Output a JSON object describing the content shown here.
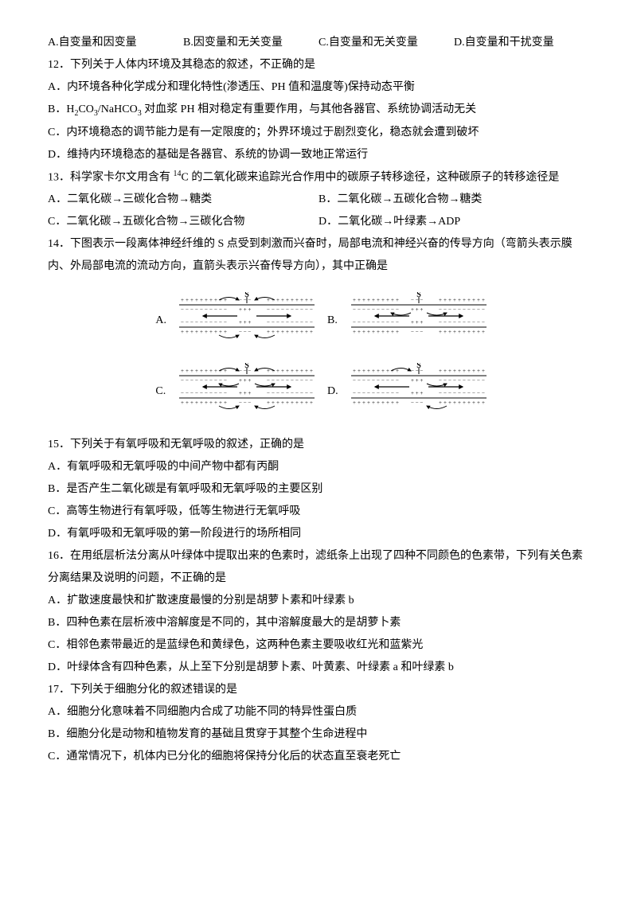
{
  "q11_opts": {
    "a": "A.自变量和因变量",
    "b": "B.因变量和无关变量",
    "c": "C.自变量和无关变量",
    "d": "D.自变量和干扰变量"
  },
  "q12": {
    "stem": "12．下列关于人体内环境及其稳态的叙述，不正确的是",
    "a": "A．内环境各种化学成分和理化特性(渗透压、PH 值和温度等)保持动态平衡",
    "b_pre": "B．H",
    "b_sub1": "2",
    "b_mid1": "CO",
    "b_sub2": "3",
    "b_mid2": "/NaHCO",
    "b_sub3": "3",
    "b_post": " 对血浆 PH 相对稳定有重要作用，与其他各器官、系统协调活动无关",
    "c": "C．内环境稳态的调节能力是有一定限度的；外界环境过于剧烈变化，稳态就会遭到破坏",
    "d": "D．维持内环境稳态的基础是各器官、系统的协调一致地正常运行"
  },
  "q13": {
    "stem_pre": "13．科学家卡尔文用含有 ",
    "stem_sup": "14",
    "stem_post": "C 的二氧化碳来追踪光合作用中的碳原子转移途径，这种碳原子的转移途径是",
    "a": "A．二氧化碳→三碳化合物→糖类",
    "b": "B．二氧化碳→五碳化合物→糖类",
    "c": "C．二氧化碳→五碳化合物→三碳化合物",
    "d": "D．二氧化碳→叶绿素→ADP"
  },
  "q14": {
    "stem": "14．下图表示一段离体神经纤维的 S 点受到刺激而兴奋时，局部电流和神经兴奋的传导方向（弯箭头表示膜内、外局部电流的流动方向，直箭头表示兴奋传导方向），其中正确是",
    "labels": {
      "a": "A.",
      "b": "B.",
      "c": "C.",
      "d": "D."
    }
  },
  "q15": {
    "stem": "15．下列关于有氧呼吸和无氧呼吸的叙述，正确的是",
    "a": "A．有氧呼吸和无氧呼吸的中间产物中都有丙酮",
    "b": "B．是否产生二氧化碳是有氧呼吸和无氧呼吸的主要区别",
    "c": "C．高等生物进行有氧呼吸，低等生物进行无氧呼吸",
    "d": "D．有氧呼吸和无氧呼吸的第一阶段进行的场所相同"
  },
  "q16": {
    "stem": "16．在用纸层析法分离从叶绿体中提取出来的色素时，滤纸条上出现了四种不同颜色的色素带，下列有关色素分离结果及说明的问题，不正确的是",
    "a": "A．扩散速度最快和扩散速度最慢的分别是胡萝卜素和叶绿素 b",
    "b": "B．四种色素在层析液中溶解度是不同的，其中溶解度最大的是胡萝卜素",
    "c": "C．相邻色素带最近的是蓝绿色和黄绿色，这两种色素主要吸收红光和蓝紫光",
    "d": "D．叶绿体含有四种色素，从上至下分别是胡萝卜素、叶黄素、叶绿素 a 和叶绿素 b"
  },
  "q17": {
    "stem": "17．下列关于细胞分化的叙述错误的是",
    "a": "A．细胞分化意味着不同细胞内合成了功能不同的特异性蛋白质",
    "b": "B．细胞分化是动物和植物发育的基础且贯穿于其整个生命进程中",
    "c": "C．通常情况下，机体内已分化的细胞将保持分化后的状态直至衰老死亡"
  },
  "nerve_svg": {
    "width": 170,
    "height": 60,
    "colors": {
      "stroke": "#000000",
      "bg": "#ffffff"
    },
    "panels": {
      "A": {
        "outer_top_left": true,
        "outer_top_right": true,
        "outer_bot_left": true,
        "outer_bot_right": true,
        "inner_left": false,
        "inner_right": false,
        "straight_left": true,
        "straight_right": true,
        "s_top": true
      },
      "B": {
        "outer_top_left": false,
        "outer_top_right": false,
        "outer_bot_left": false,
        "outer_bot_right": false,
        "inner_left": true,
        "inner_right": true,
        "straight_left": true,
        "straight_right": true,
        "s_top": true
      },
      "C": {
        "outer_top_left": true,
        "outer_top_right": true,
        "outer_bot_left": true,
        "outer_bot_right": true,
        "inner_left": true,
        "inner_right": true,
        "straight_left": true,
        "straight_right": true,
        "s_top": true
      },
      "D": {
        "outer_top_left": true,
        "outer_top_right": false,
        "outer_bot_left": false,
        "outer_bot_right": true,
        "inner_left": false,
        "inner_right": true,
        "straight_left": true,
        "straight_right": true,
        "s_top": true
      }
    }
  }
}
